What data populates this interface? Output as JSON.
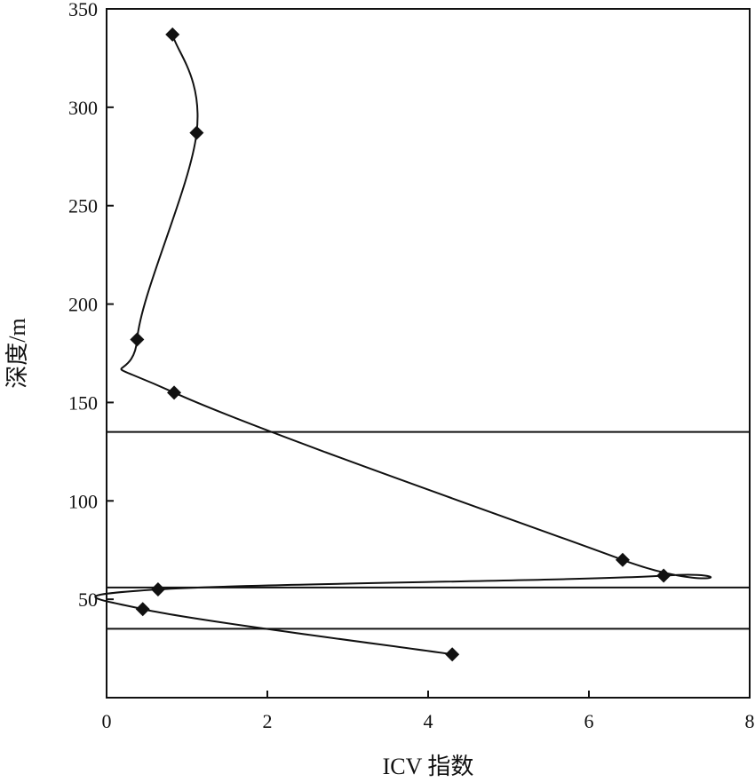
{
  "chart_data": {
    "type": "line",
    "xlabel": "ICV 指数",
    "ylabel": "深度/m",
    "xlim": [
      0,
      8
    ],
    "ylim": [
      0,
      350
    ],
    "x_ticks": [
      0,
      2,
      4,
      6,
      8
    ],
    "y_ticks": [
      50,
      100,
      150,
      200,
      250,
      300,
      350
    ],
    "x_tick_labels": [
      "0",
      "2",
      "4",
      "6",
      "8"
    ],
    "y_tick_labels": [
      "50",
      "100",
      "150",
      "200",
      "250",
      "300",
      "350"
    ],
    "grid": false,
    "marker": "diamond",
    "line_color": "#111111",
    "series": [
      {
        "points": [
          {
            "x": 0.82,
            "y": 337
          },
          {
            "x": 1.12,
            "y": 287
          },
          {
            "x": 0.38,
            "y": 182
          },
          {
            "x": 0.84,
            "y": 155
          },
          {
            "x": 6.42,
            "y": 70
          },
          {
            "x": 6.93,
            "y": 62
          },
          {
            "x": 0.64,
            "y": 55
          },
          {
            "x": 0.45,
            "y": 45
          },
          {
            "x": 4.3,
            "y": 22
          }
        ]
      }
    ],
    "reference_lines_y": [
      135,
      56,
      35
    ]
  }
}
